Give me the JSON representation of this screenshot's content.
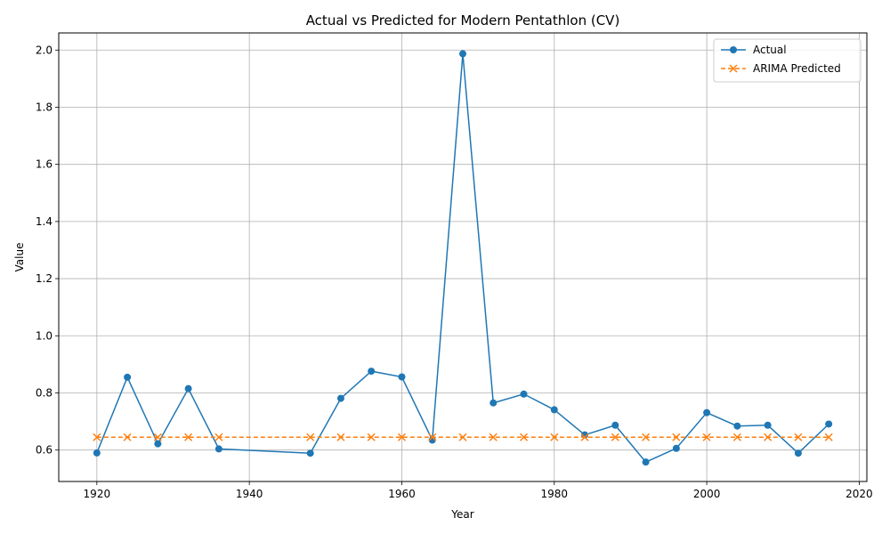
{
  "chart_data": {
    "type": "line",
    "title": "Actual vs Predicted for Modern Pentathlon (CV)",
    "xlabel": "Year",
    "ylabel": "Value",
    "xlim": [
      1915,
      2021
    ],
    "ylim": [
      0.49,
      2.06
    ],
    "xticks": [
      1920,
      1940,
      1960,
      1980,
      2000,
      2020
    ],
    "yticks": [
      0.6,
      0.8,
      1.0,
      1.2,
      1.4,
      1.6,
      1.8,
      2.0
    ],
    "grid": true,
    "legend_position": "top-right",
    "x": [
      1920,
      1924,
      1928,
      1932,
      1936,
      1948,
      1952,
      1956,
      1960,
      1964,
      1968,
      1972,
      1976,
      1980,
      1984,
      1988,
      1992,
      1996,
      2000,
      2004,
      2008,
      2012,
      2016
    ],
    "series": [
      {
        "name": "Actual",
        "color": "#1f77b4",
        "style": "solid",
        "marker": "circle",
        "values": [
          0.59,
          0.855,
          0.622,
          0.815,
          0.604,
          0.589,
          0.781,
          0.876,
          0.856,
          0.635,
          1.987,
          0.765,
          0.796,
          0.741,
          0.653,
          0.687,
          0.558,
          0.606,
          0.731,
          0.684,
          0.687,
          0.589,
          0.691
        ]
      },
      {
        "name": "ARIMA Predicted",
        "color": "#ff7f0e",
        "style": "dashed",
        "marker": "x",
        "values": [
          0.645,
          0.645,
          0.645,
          0.645,
          0.645,
          0.645,
          0.645,
          0.645,
          0.645,
          0.645,
          0.645,
          0.645,
          0.645,
          0.645,
          0.645,
          0.645,
          0.645,
          0.645,
          0.645,
          0.645,
          0.645,
          0.645,
          0.645
        ]
      }
    ]
  }
}
